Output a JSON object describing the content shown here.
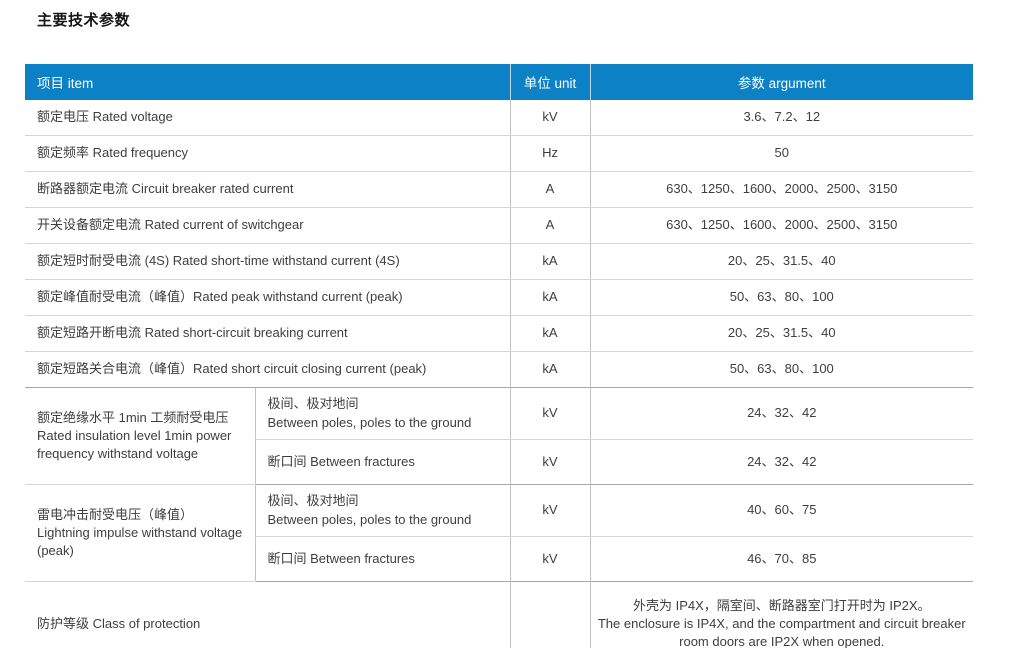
{
  "page": {
    "title": "主要技术参数"
  },
  "colors": {
    "header_bg": "#0d81c6",
    "header_text": "#ffffff",
    "body_text": "#3e3e3e",
    "grid_line": "#d6d6d6",
    "section_line": "#a6a6a6"
  },
  "table": {
    "header": {
      "item": "项目  item",
      "unit": "单位  unit",
      "argument": "参数 argument"
    },
    "rows": [
      {
        "label": "额定电压 Rated voltage",
        "unit": "kV",
        "value": "3.6、7.2、12"
      },
      {
        "label": "额定频率  Rated frequency",
        "unit": "Hz",
        "value": "50"
      },
      {
        "label": "断路器额定电流  Circuit breaker rated current",
        "unit": "A",
        "value": "630、1250、1600、2000、2500、3150"
      },
      {
        "label": "开关设备额定电流  Rated current of switchgear",
        "unit": "A",
        "value": "630、1250、1600、2000、2500、3150"
      },
      {
        "label": "额定短时耐受电流 (4S) Rated short-time withstand current (4S)",
        "unit": "kA",
        "value": "20、25、31.5、40"
      },
      {
        "label": "额定峰值耐受电流（峰值）Rated peak withstand current (peak)",
        "unit": "kA",
        "value": "50、63、80、100"
      },
      {
        "label": "额定短路开断电流 Rated short-circuit breaking current",
        "unit": "kA",
        "value": "20、25、31.5、40"
      },
      {
        "label": "额定短路关合电流（峰值）Rated short circuit closing current (peak)",
        "unit": "kA",
        "value": "50、63、80、100"
      }
    ],
    "groups": [
      {
        "label_zh": "额定绝缘水平 1min 工频耐受电压",
        "label_en": "Rated insulation level 1min power frequency withstand voltage",
        "subrows": [
          {
            "label_zh": "极间、极对地间",
            "label_en": "Between poles, poles to the ground",
            "unit": "kV",
            "value": "24、32、42"
          },
          {
            "label": "断口间 Between fractures",
            "unit": "kV",
            "value": "24、32、42"
          }
        ]
      },
      {
        "label_zh": "雷电冲击耐受电压（峰值）",
        "label_en": "Lightning impulse withstand voltage (peak)",
        "subrows": [
          {
            "label_zh": "极间、极对地间",
            "label_en": "Between poles, poles to the ground",
            "unit": "kV",
            "value": "40、60、75"
          },
          {
            "label": "断口间 Between fractures",
            "unit": "kV",
            "value": "46、70、85"
          }
        ]
      }
    ],
    "protection": {
      "label": "防护等级 Class of protection",
      "unit": "",
      "value_zh": "外壳为 IP4X，隔室间、断路器室门打开时为 IP2X。",
      "value_en": "The enclosure is IP4X, and the compartment and circuit breaker room doors are IP2X when opened."
    }
  }
}
